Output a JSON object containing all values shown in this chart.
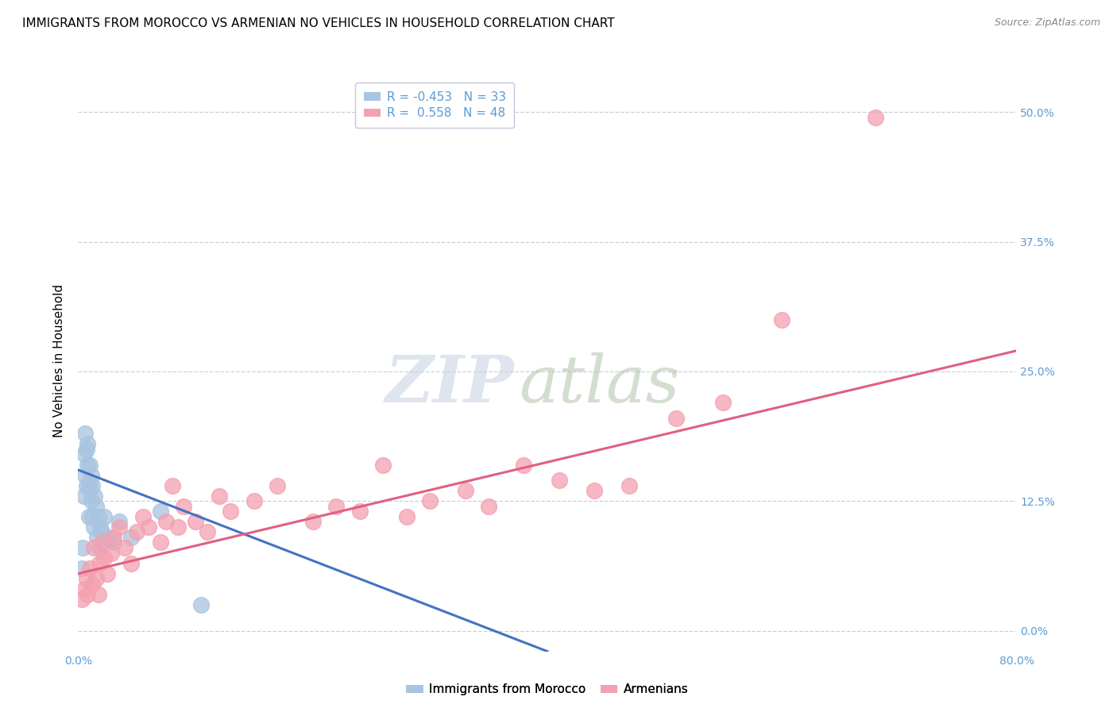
{
  "title": "IMMIGRANTS FROM MOROCCO VS ARMENIAN NO VEHICLES IN HOUSEHOLD CORRELATION CHART",
  "source": "Source: ZipAtlas.com",
  "ylabel": "No Vehicles in Household",
  "ytick_labels": [
    "0.0%",
    "12.5%",
    "25.0%",
    "37.5%",
    "50.0%"
  ],
  "ytick_values": [
    0.0,
    12.5,
    25.0,
    37.5,
    50.0
  ],
  "xlim": [
    0.0,
    80.0
  ],
  "ylim": [
    -2.0,
    54.0
  ],
  "legend_r1": "R = -0.453",
  "legend_n1": "N = 33",
  "legend_r2": "R =  0.558",
  "legend_n2": "N = 48",
  "color_blue": "#a8c4e0",
  "color_pink": "#f4a0b0",
  "color_blue_line": "#4472c4",
  "color_pink_line": "#e06080",
  "blue_line_x0": 0.0,
  "blue_line_y0": 15.5,
  "blue_line_x1": 40.0,
  "blue_line_y1": -2.0,
  "pink_line_x0": 0.0,
  "pink_line_y0": 5.5,
  "pink_line_x1": 80.0,
  "pink_line_y1": 27.0,
  "blue_scatter_x": [
    0.3,
    0.4,
    0.5,
    0.5,
    0.6,
    0.6,
    0.7,
    0.7,
    0.8,
    0.8,
    0.9,
    0.9,
    1.0,
    1.0,
    1.1,
    1.1,
    1.2,
    1.2,
    1.3,
    1.4,
    1.5,
    1.6,
    1.7,
    1.8,
    1.9,
    2.0,
    2.2,
    2.5,
    3.0,
    3.5,
    4.5,
    7.0,
    10.5
  ],
  "blue_scatter_y": [
    6.0,
    8.0,
    13.0,
    17.0,
    15.0,
    19.0,
    14.0,
    17.5,
    16.0,
    18.0,
    11.0,
    14.0,
    13.5,
    16.0,
    12.5,
    15.0,
    11.0,
    14.0,
    10.0,
    13.0,
    12.0,
    9.0,
    11.0,
    8.0,
    10.0,
    9.5,
    11.0,
    9.0,
    8.5,
    10.5,
    9.0,
    11.5,
    2.5
  ],
  "pink_scatter_x": [
    0.3,
    0.5,
    0.7,
    0.8,
    1.0,
    1.2,
    1.3,
    1.5,
    1.7,
    1.8,
    2.0,
    2.2,
    2.5,
    2.8,
    3.0,
    3.5,
    4.0,
    4.5,
    5.0,
    5.5,
    6.0,
    7.0,
    7.5,
    8.0,
    8.5,
    9.0,
    10.0,
    11.0,
    12.0,
    13.0,
    15.0,
    17.0,
    20.0,
    22.0,
    24.0,
    26.0,
    28.0,
    30.0,
    33.0,
    35.0,
    38.0,
    41.0,
    44.0,
    47.0,
    51.0,
    55.0,
    60.0,
    68.0
  ],
  "pink_scatter_y": [
    3.0,
    4.0,
    5.0,
    3.5,
    6.0,
    4.5,
    8.0,
    5.0,
    3.5,
    6.5,
    8.5,
    7.0,
    5.5,
    7.5,
    9.0,
    10.0,
    8.0,
    6.5,
    9.5,
    11.0,
    10.0,
    8.5,
    10.5,
    14.0,
    10.0,
    12.0,
    10.5,
    9.5,
    13.0,
    11.5,
    12.5,
    14.0,
    10.5,
    12.0,
    11.5,
    16.0,
    11.0,
    12.5,
    13.5,
    12.0,
    16.0,
    14.5,
    13.5,
    14.0,
    20.5,
    22.0,
    30.0,
    49.5
  ],
  "title_fontsize": 11,
  "axis_label_fontsize": 11,
  "tick_label_fontsize": 10,
  "legend_fontsize": 11,
  "source_fontsize": 9
}
